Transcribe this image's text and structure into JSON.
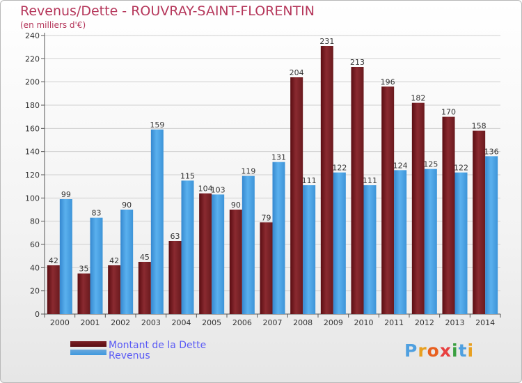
{
  "title": "Revenus/Dette - ROUVRAY-SAINT-FLORENTIN",
  "subtitle": "(en milliers d'€)",
  "logo": {
    "letters": [
      "P",
      "r",
      "o",
      "x",
      "i",
      "t",
      "i"
    ],
    "colors": [
      "#4fa0e0",
      "#e8a020",
      "#e86020",
      "#e84040",
      "#3aa040",
      "#4fa0e0",
      "#e8a020"
    ]
  },
  "colors": {
    "dette": "#7a1f24",
    "revenus": "#3e98de",
    "title": "#b5365a",
    "legend_text": "#5a5af5"
  },
  "chart_data": {
    "type": "bar",
    "categories": [
      "2000",
      "2001",
      "2002",
      "2003",
      "2004",
      "2005",
      "2006",
      "2007",
      "2008",
      "2009",
      "2010",
      "2011",
      "2012",
      "2013",
      "2014"
    ],
    "series": [
      {
        "name": "Montant de la Dette",
        "values": [
          42,
          35,
          42,
          45,
          63,
          104,
          90,
          79,
          204,
          231,
          213,
          196,
          182,
          170,
          158
        ]
      },
      {
        "name": "Revenus",
        "values": [
          99,
          83,
          90,
          159,
          115,
          103,
          119,
          131,
          111,
          122,
          111,
          124,
          125,
          122,
          136
        ]
      }
    ],
    "yticks": [
      0,
      20,
      40,
      60,
      80,
      100,
      120,
      140,
      160,
      180,
      200,
      220,
      240
    ],
    "ylim": [
      0,
      240
    ],
    "grid": true,
    "legend_position": "bottom-left"
  }
}
